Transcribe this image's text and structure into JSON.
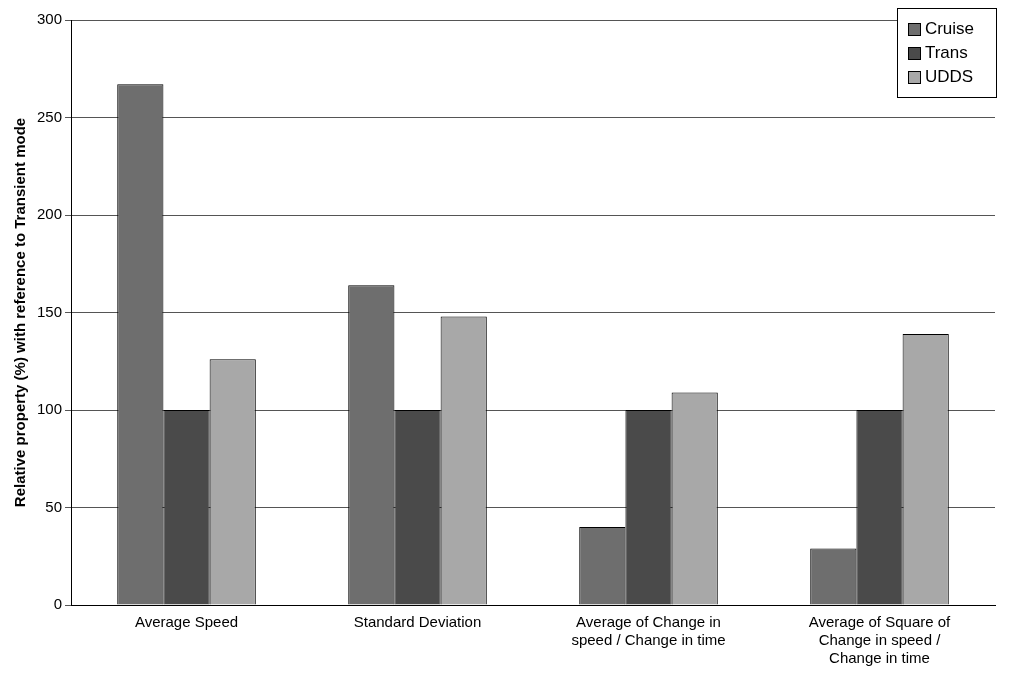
{
  "chart_data": {
    "type": "bar",
    "ylabel": "Relative property (%) with reference to Transient mode",
    "categories": [
      "Average Speed",
      "Standard Deviation",
      "Average of Change in speed / Change in time",
      "Average of Square of Change in speed / Change in time"
    ],
    "series": [
      {
        "name": "Cruise",
        "color": "#6e6e6e",
        "values": [
          267,
          164,
          40,
          29
        ]
      },
      {
        "name": "Trans",
        "color": "#4a4a4a",
        "values": [
          100,
          100,
          100,
          100
        ]
      },
      {
        "name": "UDDS",
        "color": "#a8a8a8",
        "values": [
          126,
          148,
          109,
          139
        ]
      }
    ],
    "ylim": [
      0,
      300
    ],
    "yticks": [
      0,
      50,
      100,
      150,
      200,
      250,
      300
    ],
    "grid": "y",
    "legend": "top right"
  }
}
